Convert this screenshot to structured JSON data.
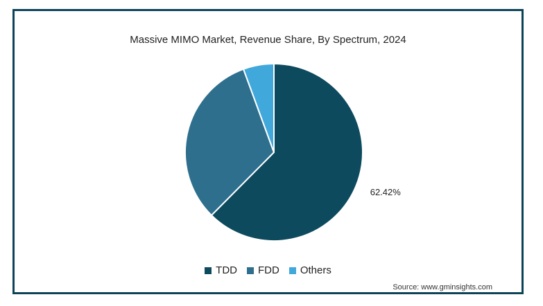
{
  "chart_data": {
    "type": "pie",
    "title": "Massive MIMO Market, Revenue Share, By Spectrum, 2024",
    "slices": [
      {
        "label": "TDD",
        "value": 62.42,
        "color": "#0d4a5e",
        "data_label": "62.42%"
      },
      {
        "label": "FDD",
        "value": 32.0,
        "color": "#2e6f8e",
        "data_label": ""
      },
      {
        "label": "Others",
        "value": 5.58,
        "color": "#41a8dc",
        "data_label": ""
      }
    ],
    "legend_position": "bottom"
  },
  "source": "Source: www.gminsights.com"
}
